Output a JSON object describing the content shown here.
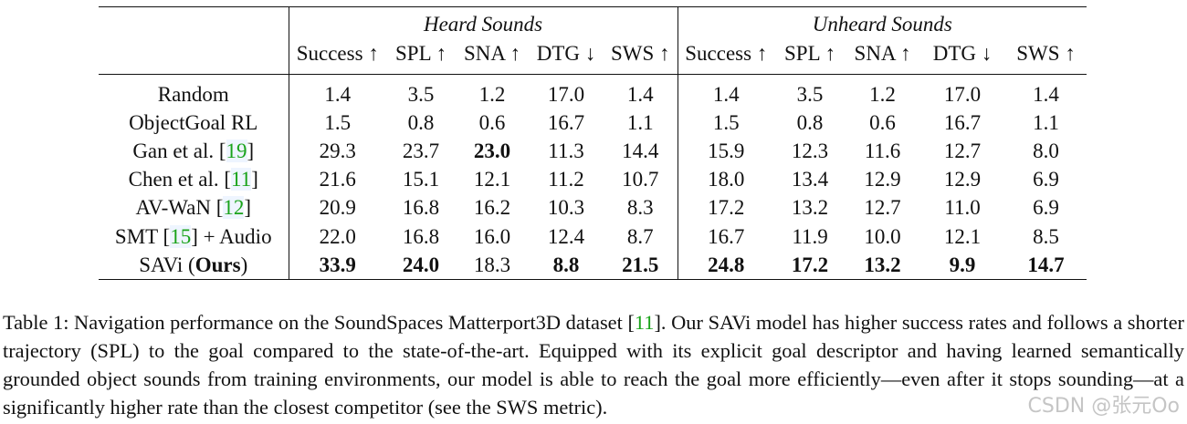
{
  "table": {
    "groups": [
      "Heard Sounds",
      "Unheard Sounds"
    ],
    "metrics": [
      "Success ↑",
      "SPL ↑",
      "SNA ↑",
      "DTG ↓",
      "SWS ↑"
    ],
    "rows": [
      {
        "method": [
          {
            "t": "Random"
          }
        ],
        "values": [
          [
            "1.4",
            0
          ],
          [
            "3.5",
            0
          ],
          [
            "1.2",
            0
          ],
          [
            "17.0",
            0
          ],
          [
            "1.4",
            0
          ],
          [
            "1.4",
            0
          ],
          [
            "3.5",
            0
          ],
          [
            "1.2",
            0
          ],
          [
            "17.0",
            0
          ],
          [
            "1.4",
            0
          ]
        ]
      },
      {
        "method": [
          {
            "t": "ObjectGoal RL"
          }
        ],
        "values": [
          [
            "1.5",
            0
          ],
          [
            "0.8",
            0
          ],
          [
            "0.6",
            0
          ],
          [
            "16.7",
            0
          ],
          [
            "1.1",
            0
          ],
          [
            "1.5",
            0
          ],
          [
            "0.8",
            0
          ],
          [
            "0.6",
            0
          ],
          [
            "16.7",
            0
          ],
          [
            "1.1",
            0
          ]
        ]
      },
      {
        "method": [
          {
            "t": "Gan et al. ["
          },
          {
            "t": "19",
            "cite": 1
          },
          {
            "t": "]"
          }
        ],
        "values": [
          [
            "29.3",
            0
          ],
          [
            "23.7",
            0
          ],
          [
            "23.0",
            1
          ],
          [
            "11.3",
            0
          ],
          [
            "14.4",
            0
          ],
          [
            "15.9",
            0
          ],
          [
            "12.3",
            0
          ],
          [
            "11.6",
            0
          ],
          [
            "12.7",
            0
          ],
          [
            "8.0",
            0
          ]
        ]
      },
      {
        "method": [
          {
            "t": "Chen et al. ["
          },
          {
            "t": "11",
            "cite": 1
          },
          {
            "t": "]"
          }
        ],
        "values": [
          [
            "21.6",
            0
          ],
          [
            "15.1",
            0
          ],
          [
            "12.1",
            0
          ],
          [
            "11.2",
            0
          ],
          [
            "10.7",
            0
          ],
          [
            "18.0",
            0
          ],
          [
            "13.4",
            0
          ],
          [
            "12.9",
            0
          ],
          [
            "12.9",
            0
          ],
          [
            "6.9",
            0
          ]
        ]
      },
      {
        "method": [
          {
            "t": "AV-WaN ["
          },
          {
            "t": "12",
            "cite": 1
          },
          {
            "t": "]"
          }
        ],
        "values": [
          [
            "20.9",
            0
          ],
          [
            "16.8",
            0
          ],
          [
            "16.2",
            0
          ],
          [
            "10.3",
            0
          ],
          [
            "8.3",
            0
          ],
          [
            "17.2",
            0
          ],
          [
            "13.2",
            0
          ],
          [
            "12.7",
            0
          ],
          [
            "11.0",
            0
          ],
          [
            "6.9",
            0
          ]
        ]
      },
      {
        "method": [
          {
            "t": "SMT ["
          },
          {
            "t": "15",
            "cite": 1
          },
          {
            "t": "] + Audio"
          }
        ],
        "values": [
          [
            "22.0",
            0
          ],
          [
            "16.8",
            0
          ],
          [
            "16.0",
            0
          ],
          [
            "12.4",
            0
          ],
          [
            "8.7",
            0
          ],
          [
            "16.7",
            0
          ],
          [
            "11.9",
            0
          ],
          [
            "10.0",
            0
          ],
          [
            "12.1",
            0
          ],
          [
            "8.5",
            0
          ]
        ]
      },
      {
        "method": [
          {
            "t": "SAVi ("
          },
          {
            "t": "Ours",
            "bold": 1
          },
          {
            "t": ")"
          }
        ],
        "values": [
          [
            "33.9",
            1
          ],
          [
            "24.0",
            1
          ],
          [
            "18.3",
            0
          ],
          [
            "8.8",
            1
          ],
          [
            "21.5",
            1
          ],
          [
            "24.8",
            1
          ],
          [
            "17.2",
            1
          ],
          [
            "13.2",
            1
          ],
          [
            "9.9",
            1
          ],
          [
            "14.7",
            1
          ]
        ]
      }
    ]
  },
  "caption": {
    "prefix": "Table 1: Navigation performance on the SoundSpaces Matterport3D dataset [",
    "cite": "11",
    "suffix": "]. Our SAVi model has higher success rates and follows a shorter trajectory (SPL) to the goal compared to the state-of-the-art. Equipped with its explicit goal descriptor and having learned semantically grounded object sounds from training environments, our model is able to reach the goal more efficiently—even after it stops sounding—at a significantly higher rate than the closest competitor (see the SWS metric)."
  },
  "watermark": "CSDN @张元Oo"
}
